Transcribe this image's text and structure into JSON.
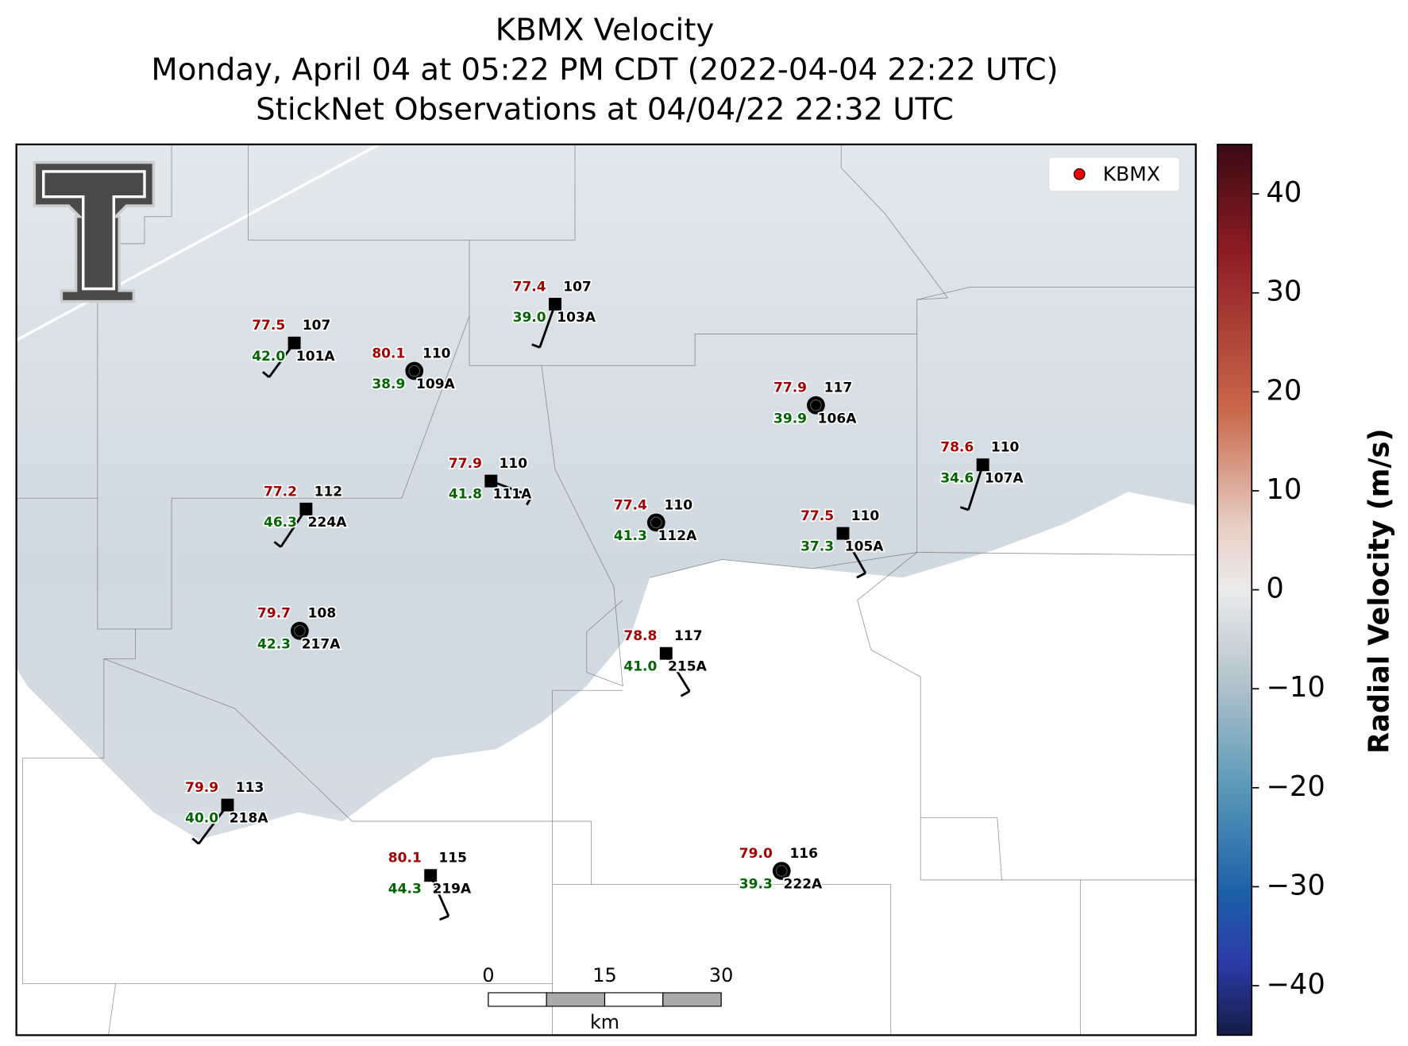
{
  "title": [
    "KBMX Velocity",
    "Monday, April 04 at 05:22 PM CDT (2022-04-04 22:22 UTC)",
    "StickNet Observations at 04/04/22 22:32 UTC"
  ],
  "legend": "KBMX",
  "stations": [
    {
      "temp": "77.5",
      "value": "107",
      "dew": "42.0",
      "id": "101A"
    },
    {
      "temp": "80.1",
      "value": "110",
      "dew": "38.9",
      "id": "109A"
    },
    {
      "temp": "77.4",
      "value": "107",
      "dew": "39.0",
      "id": "103A"
    },
    {
      "temp": "77.9",
      "value": "117",
      "dew": "39.9",
      "id": "106A"
    },
    {
      "temp": "78.6",
      "value": "110",
      "dew": "34.6",
      "id": "107A"
    },
    {
      "temp": "77.9",
      "value": "110",
      "dew": "41.8",
      "id": "111A"
    },
    {
      "temp": "77.2",
      "value": "112",
      "dew": "46.3",
      "id": "224A"
    },
    {
      "temp": "77.4",
      "value": "110",
      "dew": "41.3",
      "id": "112A"
    },
    {
      "temp": "77.5",
      "value": "110",
      "dew": "37.3",
      "id": "105A"
    },
    {
      "temp": "79.7",
      "value": "108",
      "dew": "42.3",
      "id": "217A"
    },
    {
      "temp": "78.8",
      "value": "117",
      "dew": "41.0",
      "id": "215A"
    },
    {
      "temp": "79.9",
      "value": "113",
      "dew": "40.0",
      "id": "218A"
    },
    {
      "temp": "80.1",
      "value": "115",
      "dew": "44.3",
      "id": "219A"
    },
    {
      "temp": "79.0",
      "value": "116",
      "dew": "39.3",
      "id": "222A"
    }
  ],
  "colorbar": {
    "label": "Radial Velocity (m/s)",
    "lim": [
      -45,
      45
    ],
    "ticks": [
      40,
      30,
      20,
      10,
      0,
      {
        "value": -10,
        "label": "−10"
      },
      {
        "value": -20,
        "label": "−20"
      },
      {
        "value": -30,
        "label": "−30"
      },
      {
        "value": -40,
        "label": "−40"
      }
    ]
  },
  "scalebar": {
    "ticks": [
      0,
      15,
      30
    ],
    "unit": "km"
  }
}
